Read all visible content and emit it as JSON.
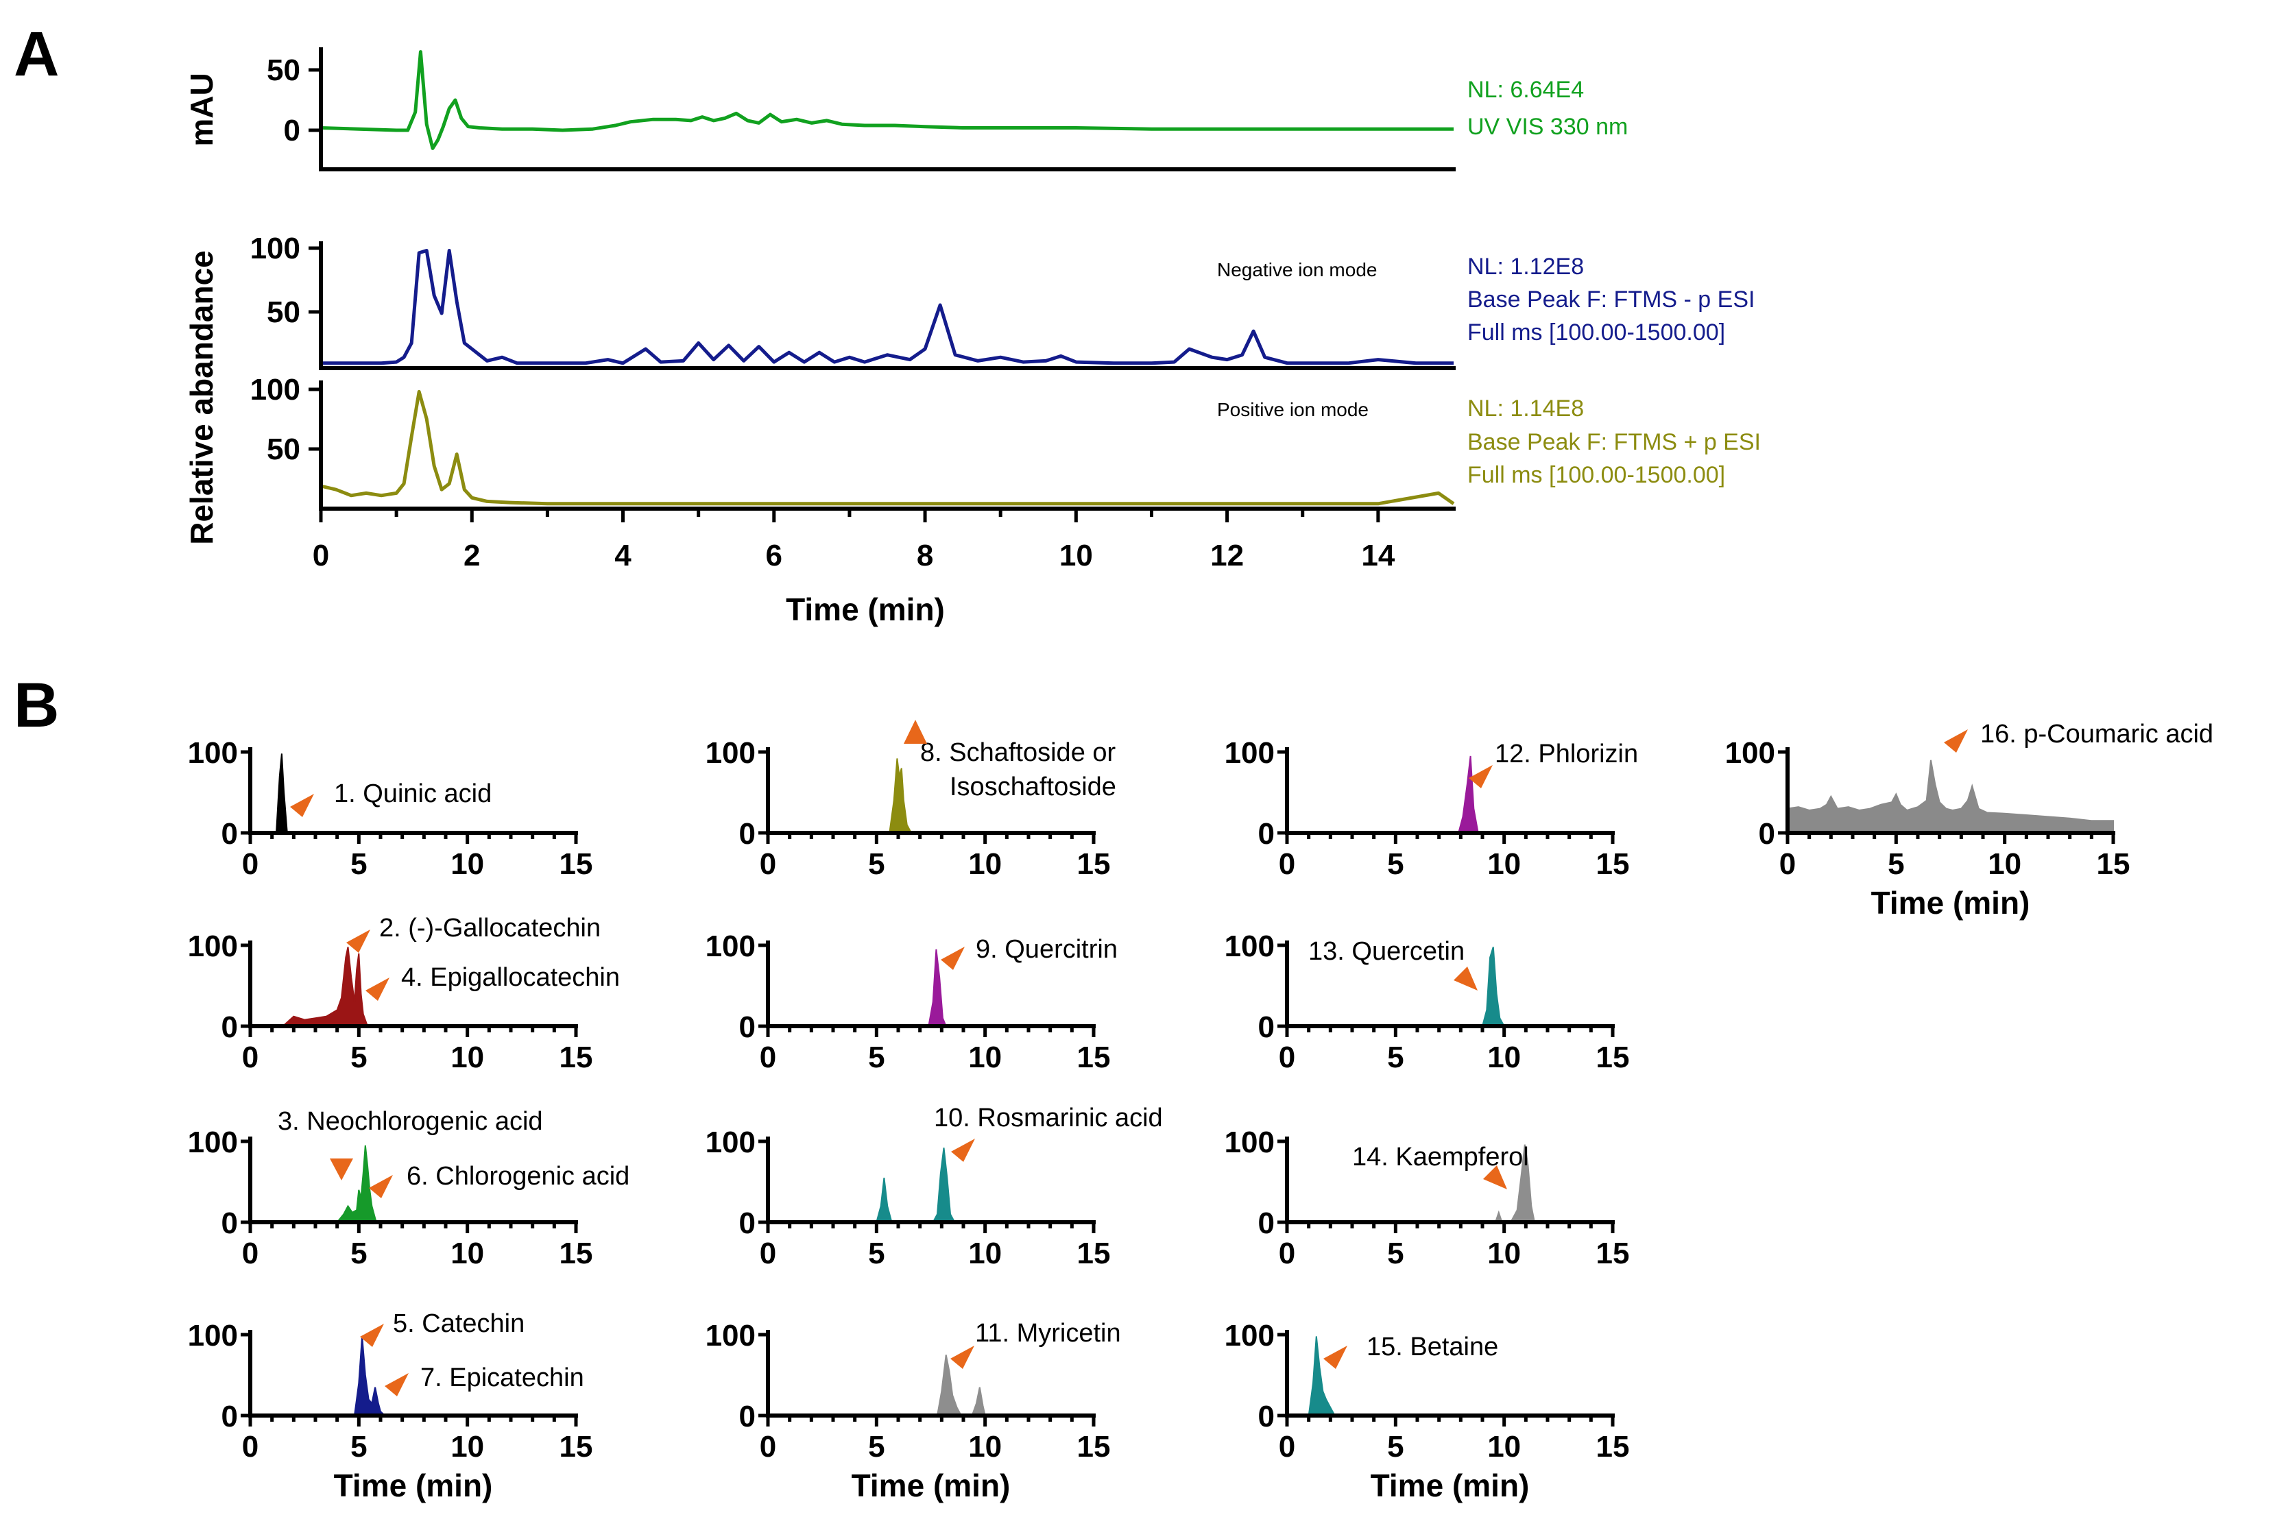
{
  "figure": {
    "panel_a_letter": "A",
    "panel_b_letter": "B"
  },
  "colors": {
    "uv": "#11a11f",
    "negative": "#141c8c",
    "positive": "#8c8c10",
    "marker": "#e8671a"
  },
  "panel_a": {
    "x_axis_label": "Time (min)",
    "x_ticks": [
      "0",
      "2",
      "4",
      "6",
      "8",
      "10",
      "12",
      "14"
    ],
    "shared_y_label": "Relative abandance",
    "uv": {
      "y_label": "mAU",
      "y_ticks": [
        "50",
        "0"
      ],
      "info": [
        "NL: 6.64E4",
        "UV VIS 330 nm"
      ]
    },
    "negative": {
      "mode": "Negative ion mode",
      "y_ticks": [
        "100",
        "50"
      ],
      "info": [
        "NL: 1.12E8",
        "Base Peak F: FTMS - p ESI",
        "Full ms [100.00-1500.00]"
      ]
    },
    "positive": {
      "mode": "Positive ion mode",
      "y_ticks": [
        "100",
        "50"
      ],
      "info": [
        "NL: 1.14E8",
        "Base Peak F: FTMS + p ESI",
        "Full ms [100.00-1500.00]"
      ]
    }
  },
  "panel_b": {
    "x_ticks": [
      "0",
      "5",
      "10",
      "15"
    ],
    "y_ticks": [
      "100",
      "0"
    ],
    "x_axis_label": "Time (min)",
    "compounds": [
      {
        "label": "1. Quinic acid"
      },
      {
        "label": "2. (-)-Gallocatechin"
      },
      {
        "label": "3. Neochlorogenic acid"
      },
      {
        "label": "4. Epigallocatechin"
      },
      {
        "label": "5. Catechin"
      },
      {
        "label": "6. Chlorogenic acid"
      },
      {
        "label": "7. Epicatechin"
      },
      {
        "label": "8. Schaftoside or",
        "label2": "Isoschaftoside"
      },
      {
        "label": "9. Quercitrin"
      },
      {
        "label": "10. Rosmarinic acid"
      },
      {
        "label": "11. Myricetin"
      },
      {
        "label": "12. Phlorizin"
      },
      {
        "label": "13. Quercetin"
      },
      {
        "label": "14. Kaempferol"
      },
      {
        "label": "15. Betaine"
      },
      {
        "label": "16. p-Coumaric acid"
      }
    ]
  },
  "chart_data": [
    {
      "type": "line",
      "title": "UV VIS 330 nm",
      "xlabel": "Time (min)",
      "ylabel": "mAU",
      "xlim": [
        0,
        15
      ],
      "ylim": [
        -35,
        65
      ],
      "series": [
        {
          "name": "UV VIS 330 nm",
          "color": "#11a11f",
          "x": [
            0,
            0.5,
            1.0,
            1.15,
            1.25,
            1.32,
            1.4,
            1.48,
            1.55,
            1.62,
            1.7,
            1.78,
            1.86,
            1.95,
            2.1,
            2.4,
            2.8,
            3.2,
            3.6,
            3.9,
            4.1,
            4.4,
            4.7,
            4.9,
            5.05,
            5.2,
            5.35,
            5.5,
            5.65,
            5.8,
            5.95,
            6.1,
            6.3,
            6.5,
            6.7,
            6.9,
            7.2,
            7.6,
            8.0,
            8.5,
            9.0,
            10,
            11,
            12,
            13,
            14,
            15
          ],
          "y": [
            2,
            1,
            0,
            0,
            15,
            65,
            5,
            -15,
            -8,
            3,
            18,
            25,
            10,
            3,
            2,
            1,
            1,
            0,
            1,
            4,
            7,
            9,
            9,
            8,
            11,
            8,
            10,
            14,
            8,
            6,
            13,
            7,
            9,
            6,
            8,
            5,
            4,
            4,
            3,
            2,
            2,
            2,
            1,
            1,
            1,
            1,
            1
          ]
        }
      ]
    },
    {
      "type": "line",
      "title": "Negative ion mode",
      "xlabel": "Time (min)",
      "ylabel": "Relative abandance",
      "xlim": [
        0,
        15
      ],
      "ylim": [
        0,
        100
      ],
      "series": [
        {
          "name": "Base Peak F: FTMS - p ESI",
          "color": "#141c8c",
          "x": [
            0,
            0.8,
            1.0,
            1.1,
            1.2,
            1.3,
            1.4,
            1.5,
            1.6,
            1.7,
            1.8,
            1.9,
            2.0,
            2.2,
            2.4,
            2.6,
            3.0,
            3.5,
            3.8,
            4.0,
            4.3,
            4.5,
            4.8,
            5.0,
            5.2,
            5.4,
            5.6,
            5.8,
            6.0,
            6.2,
            6.4,
            6.6,
            6.8,
            7.0,
            7.2,
            7.5,
            7.8,
            8.0,
            8.2,
            8.4,
            8.7,
            9.0,
            9.3,
            9.6,
            9.8,
            10.0,
            10.5,
            11.0,
            11.3,
            11.5,
            11.8,
            12.0,
            12.2,
            12.35,
            12.5,
            12.8,
            13.2,
            13.6,
            14.0,
            14.5,
            15
          ],
          "y": [
            3,
            3,
            4,
            8,
            20,
            96,
            98,
            60,
            45,
            98,
            55,
            20,
            15,
            5,
            8,
            3,
            3,
            3,
            6,
            3,
            15,
            4,
            5,
            20,
            6,
            18,
            5,
            17,
            4,
            12,
            4,
            12,
            4,
            8,
            4,
            10,
            6,
            15,
            52,
            10,
            5,
            8,
            4,
            5,
            9,
            4,
            3,
            3,
            4,
            15,
            8,
            6,
            10,
            30,
            8,
            3,
            3,
            3,
            6,
            3,
            3
          ]
        }
      ]
    },
    {
      "type": "line",
      "title": "Positive ion mode",
      "xlabel": "Time (min)",
      "ylabel": "Relative abandance",
      "xlim": [
        0,
        15
      ],
      "ylim": [
        0,
        100
      ],
      "series": [
        {
          "name": "Base Peak F: FTMS + p ESI",
          "color": "#8c8c10",
          "x": [
            0,
            0.2,
            0.4,
            0.6,
            0.8,
            1.0,
            1.1,
            1.2,
            1.3,
            1.4,
            1.5,
            1.6,
            1.7,
            1.8,
            1.9,
            2.0,
            2.2,
            2.5,
            3.0,
            4.0,
            5.0,
            6.0,
            7.0,
            8.0,
            9.0,
            10,
            11,
            12,
            13,
            14,
            14.8,
            15
          ],
          "y": [
            18,
            15,
            10,
            12,
            10,
            12,
            20,
            60,
            98,
            75,
            35,
            15,
            20,
            45,
            15,
            8,
            5,
            4,
            3,
            3,
            3,
            3,
            3,
            3,
            3,
            3,
            3,
            3,
            3,
            3,
            12,
            3
          ]
        }
      ]
    },
    {
      "type": "area",
      "title": "1. Quinic acid",
      "xlabel": "Time (min)",
      "xlim": [
        0,
        15
      ],
      "ylim": [
        0,
        100
      ],
      "series": [
        {
          "name": "1. Quinic acid",
          "color": "#000000",
          "x": [
            1.2,
            1.35,
            1.45,
            1.55,
            1.7
          ],
          "y": [
            0,
            70,
            98,
            50,
            0
          ]
        }
      ]
    },
    {
      "type": "area",
      "title": "2. (-)-Gallocatechin / 4. Epigallocatechin",
      "xlabel": "Time (min)",
      "xlim": [
        0,
        15
      ],
      "ylim": [
        0,
        100
      ],
      "series": [
        {
          "name": "2. (-)-Gallocatechin; 4. Epigallocatechin",
          "color": "#9b1515",
          "x": [
            1.5,
            2.0,
            2.5,
            3.0,
            3.5,
            4.0,
            4.2,
            4.4,
            4.5,
            4.65,
            4.8,
            4.9,
            5.0,
            5.1,
            5.2,
            5.4
          ],
          "y": [
            0,
            12,
            8,
            10,
            12,
            20,
            35,
            85,
            98,
            60,
            30,
            70,
            90,
            40,
            15,
            0
          ]
        }
      ]
    },
    {
      "type": "area",
      "title": "3. Neochlorogenic acid / 6. Chlorogenic acid",
      "xlabel": "Time (min)",
      "xlim": [
        0,
        15
      ],
      "ylim": [
        0,
        100
      ],
      "series": [
        {
          "name": "3. Neochlorogenic acid; 6. Chlorogenic acid",
          "color": "#169a2a",
          "x": [
            4.0,
            4.3,
            4.5,
            4.7,
            4.9,
            5.0,
            5.1,
            5.2,
            5.3,
            5.4,
            5.5,
            5.6,
            5.8
          ],
          "y": [
            0,
            10,
            20,
            12,
            15,
            40,
            30,
            60,
            95,
            70,
            40,
            20,
            0
          ]
        }
      ]
    },
    {
      "type": "area",
      "title": "5. Catechin / 7. Epicatechin",
      "xlabel": "Time (min)",
      "xlim": [
        0,
        15
      ],
      "ylim": [
        0,
        100
      ],
      "series": [
        {
          "name": "5. Catechin; 7. Epicatechin",
          "color": "#141c8c",
          "x": [
            4.8,
            5.0,
            5.15,
            5.3,
            5.45,
            5.6,
            5.75,
            5.9,
            6.0,
            6.2
          ],
          "y": [
            0,
            40,
            98,
            50,
            20,
            15,
            35,
            15,
            5,
            0
          ]
        }
      ]
    },
    {
      "type": "area",
      "title": "8. Schaftoside or Isoschaftoside",
      "xlabel": "Time (min)",
      "xlim": [
        0,
        15
      ],
      "ylim": [
        0,
        100
      ],
      "series": [
        {
          "name": "8. Schaftoside or Isoschaftoside",
          "color": "#8c8c10",
          "x": [
            5.6,
            5.8,
            5.95,
            6.05,
            6.15,
            6.25,
            6.4,
            6.6
          ],
          "y": [
            0,
            40,
            92,
            70,
            80,
            40,
            10,
            0
          ]
        }
      ]
    },
    {
      "type": "area",
      "title": "9. Quercitrin",
      "xlabel": "Time (min)",
      "xlim": [
        0,
        15
      ],
      "ylim": [
        0,
        100
      ],
      "series": [
        {
          "name": "9. Quercitrin",
          "color": "#9a1a9a",
          "x": [
            7.4,
            7.6,
            7.75,
            7.9,
            8.05,
            8.2
          ],
          "y": [
            0,
            30,
            95,
            60,
            10,
            0
          ]
        }
      ]
    },
    {
      "type": "area",
      "title": "10. Rosmarinic acid",
      "xlabel": "Time (min)",
      "xlim": [
        0,
        15
      ],
      "ylim": [
        0,
        100
      ],
      "series": [
        {
          "name": "10. Rosmarinic acid",
          "color": "#178b8b",
          "x": [
            5.0,
            5.2,
            5.35,
            5.5,
            5.7,
            7.6,
            7.8,
            7.95,
            8.1,
            8.25,
            8.4,
            8.6
          ],
          "y": [
            0,
            20,
            55,
            20,
            0,
            0,
            10,
            60,
            92,
            55,
            10,
            0
          ]
        }
      ]
    },
    {
      "type": "area",
      "title": "11. Myricetin",
      "xlabel": "Time (min)",
      "xlim": [
        0,
        15
      ],
      "ylim": [
        0,
        100
      ],
      "series": [
        {
          "name": "11. Myricetin",
          "color": "#8e8e8e",
          "x": [
            7.8,
            8.0,
            8.2,
            8.35,
            8.5,
            8.7,
            8.9,
            9.4,
            9.6,
            9.75,
            9.9,
            10.0
          ],
          "y": [
            0,
            30,
            75,
            55,
            25,
            10,
            0,
            0,
            15,
            35,
            12,
            0
          ]
        }
      ]
    },
    {
      "type": "area",
      "title": "12. Phlorizin",
      "xlabel": "Time (min)",
      "xlim": [
        0,
        15
      ],
      "ylim": [
        0,
        100
      ],
      "series": [
        {
          "name": "12. Phlorizin",
          "color": "#9a1a9a",
          "x": [
            7.9,
            8.1,
            8.3,
            8.45,
            8.6,
            8.8
          ],
          "y": [
            0,
            20,
            60,
            95,
            30,
            0
          ]
        }
      ]
    },
    {
      "type": "area",
      "title": "13. Quercetin",
      "xlabel": "Time (min)",
      "xlim": [
        0,
        15
      ],
      "ylim": [
        0,
        100
      ],
      "series": [
        {
          "name": "13. Quercetin",
          "color": "#178b8b",
          "x": [
            9.0,
            9.2,
            9.35,
            9.5,
            9.65,
            9.8,
            10.0
          ],
          "y": [
            0,
            20,
            85,
            98,
            40,
            10,
            0
          ]
        }
      ]
    },
    {
      "type": "area",
      "title": "14. Kaempferol",
      "xlabel": "Time (min)",
      "xlim": [
        0,
        15
      ],
      "ylim": [
        0,
        100
      ],
      "series": [
        {
          "name": "14. Kaempferol",
          "color": "#8e8e8e",
          "x": [
            9.6,
            9.75,
            9.9,
            10.3,
            10.6,
            10.8,
            10.95,
            11.1,
            11.25,
            11.4
          ],
          "y": [
            0,
            12,
            0,
            0,
            15,
            60,
            96,
            70,
            20,
            0
          ]
        }
      ]
    },
    {
      "type": "area",
      "title": "15. Betaine",
      "xlabel": "Time (min)",
      "xlim": [
        0,
        15
      ],
      "ylim": [
        0,
        100
      ],
      "series": [
        {
          "name": "15. Betaine",
          "color": "#178b8b",
          "x": [
            1.0,
            1.2,
            1.35,
            1.5,
            1.65,
            1.8,
            2.0,
            2.2
          ],
          "y": [
            0,
            40,
            98,
            60,
            30,
            20,
            10,
            0
          ]
        }
      ]
    },
    {
      "type": "area",
      "title": "16. p-Coumaric acid",
      "xlabel": "Time (min)",
      "xlim": [
        0,
        15
      ],
      "ylim": [
        0,
        100
      ],
      "series": [
        {
          "name": "16. p-Coumaric acid",
          "color": "#8a8a8a",
          "x": [
            0,
            0.5,
            1.0,
            1.5,
            1.8,
            2.0,
            2.3,
            2.8,
            3.3,
            3.8,
            4.3,
            4.8,
            5.0,
            5.2,
            5.5,
            6.0,
            6.4,
            6.6,
            6.8,
            7.0,
            7.3,
            7.6,
            8.0,
            8.3,
            8.5,
            8.8,
            9.2,
            10.0,
            11.0,
            12.0,
            13.0,
            14.0,
            15.0
          ],
          "y": [
            30,
            32,
            28,
            30,
            35,
            45,
            30,
            32,
            28,
            30,
            35,
            38,
            48,
            35,
            28,
            32,
            40,
            90,
            60,
            38,
            30,
            28,
            30,
            40,
            58,
            30,
            25,
            24,
            22,
            20,
            18,
            15,
            15
          ]
        }
      ]
    }
  ]
}
